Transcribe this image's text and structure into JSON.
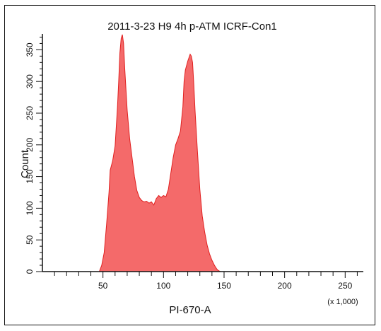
{
  "chart_data": {
    "type": "area",
    "title": "2011-3-23 H9 4h p-ATM ICRF-Con1",
    "xlabel": "PI-670-A",
    "ylabel": "Count",
    "x_multiplier_label": "(x 1,000)",
    "xlim": [
      0,
      265
    ],
    "ylim": [
      0,
      375
    ],
    "x_ticks": [
      50,
      100,
      150,
      200,
      250
    ],
    "y_ticks": [
      0,
      50,
      100,
      150,
      200,
      250,
      300,
      350
    ],
    "fill_color": "#f46a6a",
    "stroke_color": "#e02020",
    "x": [
      47,
      49,
      51,
      53,
      55,
      56,
      58,
      60,
      62,
      63,
      64,
      65,
      66,
      67,
      68,
      70,
      72,
      74,
      76,
      78,
      80,
      82,
      84,
      86,
      88,
      90,
      92,
      94,
      96,
      98,
      100,
      102,
      104,
      106,
      108,
      110,
      112,
      114,
      116,
      117,
      118,
      120,
      122,
      123,
      124,
      125,
      126,
      128,
      130,
      132,
      134,
      136,
      138,
      140,
      142,
      144,
      145,
      147,
      150,
      200,
      265
    ],
    "values": [
      0,
      10,
      30,
      75,
      125,
      160,
      175,
      198,
      260,
      300,
      345,
      368,
      374,
      360,
      320,
      255,
      210,
      180,
      150,
      128,
      117,
      112,
      110,
      111,
      108,
      110,
      105,
      115,
      120,
      117,
      120,
      118,
      130,
      155,
      180,
      200,
      210,
      222,
      260,
      300,
      318,
      332,
      343,
      340,
      330,
      295,
      255,
      190,
      130,
      88,
      62,
      42,
      28,
      18,
      10,
      4,
      2,
      0,
      0,
      0,
      0
    ]
  }
}
